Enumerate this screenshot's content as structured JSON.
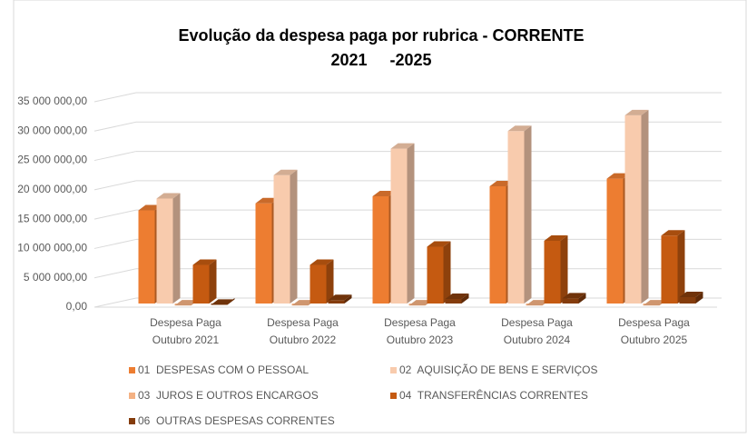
{
  "chart_data": {
    "type": "bar3d",
    "title": [
      "Evolução da despesa paga por rubrica - CORRENTE",
      "2021     -2025"
    ],
    "categories": [
      [
        "Despesa Paga",
        "Outubro 2021"
      ],
      [
        "Despesa Paga",
        "Outubro 2022"
      ],
      [
        "Despesa Paga",
        "Outubro 2023"
      ],
      [
        "Despesa Paga",
        "Outubro 2024"
      ],
      [
        "Despesa Paga",
        "Outubro 2025"
      ]
    ],
    "series": [
      {
        "name": "01  DESPESAS COM O PESSOAL",
        "color": "#ed7d31",
        "values": [
          16500000,
          17700000,
          18900000,
          20600000,
          21900000
        ]
      },
      {
        "name": "02  AQUISIÇÃO DE BENS E SERVIÇOS",
        "color": "#f8cbad",
        "values": [
          18500000,
          22500000,
          27000000,
          30000000,
          32700000
        ]
      },
      {
        "name": "03  JUROS E OUTROS ENCARGOS",
        "color": "#f4b183",
        "values": [
          300000,
          300000,
          300000,
          300000,
          300000
        ]
      },
      {
        "name": "04  TRANSFERÊNCIAS CORRENTES",
        "color": "#c55a11",
        "values": [
          7200000,
          7200000,
          10300000,
          11300000,
          12200000
        ]
      },
      {
        "name": "06  OUTRAS DESPESAS CORRENTES",
        "color": "#843c0c",
        "values": [
          400000,
          1200000,
          1400000,
          1500000,
          1700000
        ]
      }
    ],
    "ylim": [
      0,
      35000000
    ],
    "yticks": [
      {
        "value": 0,
        "label": "0,00"
      },
      {
        "value": 5000000,
        "label": "5 000 000,00"
      },
      {
        "value": 10000000,
        "label": "10 000 000,00"
      },
      {
        "value": 15000000,
        "label": "15 000 000,00"
      },
      {
        "value": 20000000,
        "label": "20 000 000,00"
      },
      {
        "value": 25000000,
        "label": "25 000 000,00"
      },
      {
        "value": 30000000,
        "label": "30 000 000,00"
      },
      {
        "value": 35000000,
        "label": "35 000 000,00"
      }
    ],
    "grid": true
  }
}
